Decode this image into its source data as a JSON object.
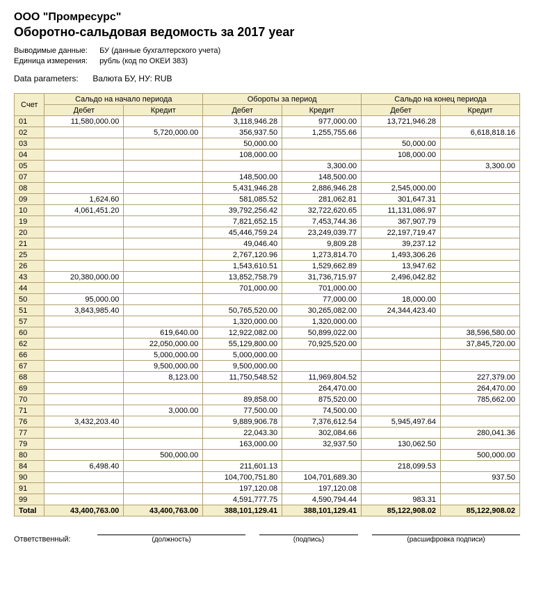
{
  "header": {
    "company": "ООО \"Промресурс\"",
    "title": "Оборотно-сальдовая ведомость за 2017 year",
    "meta1_label": "Выводимые данные:",
    "meta1_value": "БУ (данные бухгалтерского учета)",
    "meta2_label": "Единица измерения:",
    "meta2_value": "рубль (код по ОКЕИ 383)",
    "params_label": "Data parameters:",
    "params_value": "Валюта БУ, НУ: RUB"
  },
  "columns": {
    "acct": "Счет",
    "open": "Сальдо на начало периода",
    "turn": "Обороты за период",
    "close": "Сальдо на конец периода",
    "debit": "Дебет",
    "credit": "Кредит"
  },
  "rows": [
    {
      "a": "01",
      "od": "11,580,000.00",
      "oc": "",
      "td": "3,118,946.28",
      "tc": "977,000.00",
      "cd": "13,721,946.28",
      "cc": ""
    },
    {
      "a": "02",
      "od": "",
      "oc": "5,720,000.00",
      "td": "356,937.50",
      "tc": "1,255,755.66",
      "cd": "",
      "cc": "6,618,818.16"
    },
    {
      "a": "03",
      "od": "",
      "oc": "",
      "td": "50,000.00",
      "tc": "",
      "cd": "50,000.00",
      "cc": ""
    },
    {
      "a": "04",
      "od": "",
      "oc": "",
      "td": "108,000.00",
      "tc": "",
      "cd": "108,000.00",
      "cc": ""
    },
    {
      "a": "05",
      "od": "",
      "oc": "",
      "td": "",
      "tc": "3,300.00",
      "cd": "",
      "cc": "3,300.00"
    },
    {
      "a": "07",
      "od": "",
      "oc": "",
      "td": "148,500.00",
      "tc": "148,500.00",
      "cd": "",
      "cc": ""
    },
    {
      "a": "08",
      "od": "",
      "oc": "",
      "td": "5,431,946.28",
      "tc": "2,886,946.28",
      "cd": "2,545,000.00",
      "cc": ""
    },
    {
      "a": "09",
      "od": "1,624.60",
      "oc": "",
      "td": "581,085.52",
      "tc": "281,062.81",
      "cd": "301,647.31",
      "cc": ""
    },
    {
      "a": "10",
      "od": "4,061,451.20",
      "oc": "",
      "td": "39,792,256.42",
      "tc": "32,722,620.65",
      "cd": "11,131,086.97",
      "cc": ""
    },
    {
      "a": "19",
      "od": "",
      "oc": "",
      "td": "7,821,652.15",
      "tc": "7,453,744.36",
      "cd": "367,907.79",
      "cc": ""
    },
    {
      "a": "20",
      "od": "",
      "oc": "",
      "td": "45,446,759.24",
      "tc": "23,249,039.77",
      "cd": "22,197,719.47",
      "cc": ""
    },
    {
      "a": "21",
      "od": "",
      "oc": "",
      "td": "49,046.40",
      "tc": "9,809.28",
      "cd": "39,237.12",
      "cc": ""
    },
    {
      "a": "25",
      "od": "",
      "oc": "",
      "td": "2,767,120.96",
      "tc": "1,273,814.70",
      "cd": "1,493,306.26",
      "cc": ""
    },
    {
      "a": "26",
      "od": "",
      "oc": "",
      "td": "1,543,610.51",
      "tc": "1,529,662.89",
      "cd": "13,947.62",
      "cc": ""
    },
    {
      "a": "43",
      "od": "20,380,000.00",
      "oc": "",
      "td": "13,852,758.79",
      "tc": "31,736,715.97",
      "cd": "2,496,042.82",
      "cc": ""
    },
    {
      "a": "44",
      "od": "",
      "oc": "",
      "td": "701,000.00",
      "tc": "701,000.00",
      "cd": "",
      "cc": ""
    },
    {
      "a": "50",
      "od": "95,000.00",
      "oc": "",
      "td": "",
      "tc": "77,000.00",
      "cd": "18,000.00",
      "cc": ""
    },
    {
      "a": "51",
      "od": "3,843,985.40",
      "oc": "",
      "td": "50,765,520.00",
      "tc": "30,265,082.00",
      "cd": "24,344,423.40",
      "cc": ""
    },
    {
      "a": "57",
      "od": "",
      "oc": "",
      "td": "1,320,000.00",
      "tc": "1,320,000.00",
      "cd": "",
      "cc": ""
    },
    {
      "a": "60",
      "od": "",
      "oc": "619,640.00",
      "td": "12,922,082.00",
      "tc": "50,899,022.00",
      "cd": "",
      "cc": "38,596,580.00"
    },
    {
      "a": "62",
      "od": "",
      "oc": "22,050,000.00",
      "td": "55,129,800.00",
      "tc": "70,925,520.00",
      "cd": "",
      "cc": "37,845,720.00"
    },
    {
      "a": "66",
      "od": "",
      "oc": "5,000,000.00",
      "td": "5,000,000.00",
      "tc": "",
      "cd": "",
      "cc": ""
    },
    {
      "a": "67",
      "od": "",
      "oc": "9,500,000.00",
      "td": "9,500,000.00",
      "tc": "",
      "cd": "",
      "cc": ""
    },
    {
      "a": "68",
      "od": "",
      "oc": "8,123.00",
      "td": "11,750,548.52",
      "tc": "11,969,804.52",
      "cd": "",
      "cc": "227,379.00"
    },
    {
      "a": "69",
      "od": "",
      "oc": "",
      "td": "",
      "tc": "264,470.00",
      "cd": "",
      "cc": "264,470.00"
    },
    {
      "a": "70",
      "od": "",
      "oc": "",
      "td": "89,858.00",
      "tc": "875,520.00",
      "cd": "",
      "cc": "785,662.00"
    },
    {
      "a": "71",
      "od": "",
      "oc": "3,000.00",
      "td": "77,500.00",
      "tc": "74,500.00",
      "cd": "",
      "cc": ""
    },
    {
      "a": "76",
      "od": "3,432,203.40",
      "oc": "",
      "td": "9,889,906.78",
      "tc": "7,376,612.54",
      "cd": "5,945,497.64",
      "cc": ""
    },
    {
      "a": "77",
      "od": "",
      "oc": "",
      "td": "22,043.30",
      "tc": "302,084.66",
      "cd": "",
      "cc": "280,041.36"
    },
    {
      "a": "79",
      "od": "",
      "oc": "",
      "td": "163,000.00",
      "tc": "32,937.50",
      "cd": "130,062.50",
      "cc": ""
    },
    {
      "a": "80",
      "od": "",
      "oc": "500,000.00",
      "td": "",
      "tc": "",
      "cd": "",
      "cc": "500,000.00"
    },
    {
      "a": "84",
      "od": "6,498.40",
      "oc": "",
      "td": "211,601.13",
      "tc": "",
      "cd": "218,099.53",
      "cc": ""
    },
    {
      "a": "90",
      "od": "",
      "oc": "",
      "td": "104,700,751.80",
      "tc": "104,701,689.30",
      "cd": "",
      "cc": "937.50"
    },
    {
      "a": "91",
      "od": "",
      "oc": "",
      "td": "197,120.08",
      "tc": "197,120.08",
      "cd": "",
      "cc": ""
    },
    {
      "a": "99",
      "od": "",
      "oc": "",
      "td": "4,591,777.75",
      "tc": "4,590,794.44",
      "cd": "983.31",
      "cc": ""
    }
  ],
  "total": {
    "label": "Total",
    "od": "43,400,763.00",
    "oc": "43,400,763.00",
    "td": "388,101,129.41",
    "tc": "388,101,129.41",
    "cd": "85,122,908.02",
    "cc": "85,122,908.02"
  },
  "signatures": {
    "resp": "Ответственный:",
    "post": "(должность)",
    "sign": "(подпись)",
    "name": "(расшифровка подписи)"
  },
  "style": {
    "header_bg": "#f5eecb",
    "border_color": "#b0a070",
    "font": "Arial",
    "base_fontsize_pt": 11
  }
}
